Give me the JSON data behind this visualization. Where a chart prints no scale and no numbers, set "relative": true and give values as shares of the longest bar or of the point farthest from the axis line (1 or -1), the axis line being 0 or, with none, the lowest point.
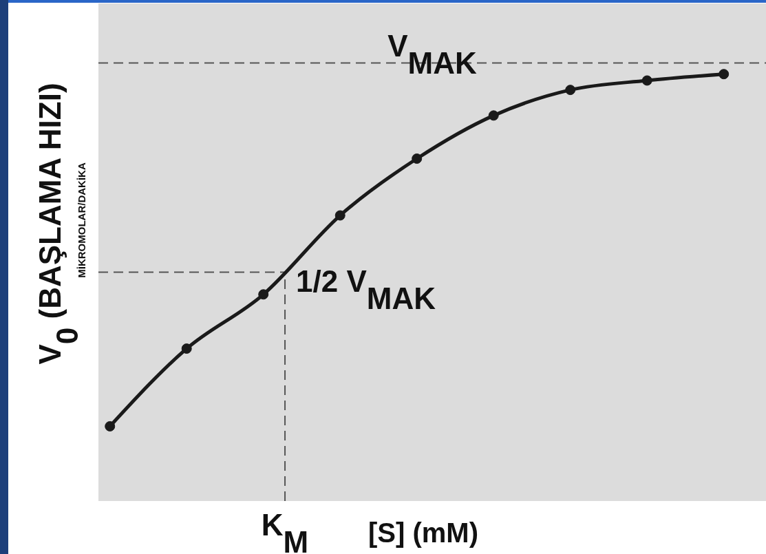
{
  "chart_data": {
    "type": "line",
    "relative": true,
    "xlabel": "[S] (mM)",
    "ylabel": "V$_{0}$ (BAŞLAMA HIZI)",
    "annotations": [
      "MİKROMOLAR/DAKİKA",
      "K$_{M}$"
    ],
    "categories": [
      null,
      null,
      null,
      null,
      null,
      null,
      null,
      null,
      null
    ],
    "series": [
      {
        "color": "#1a1a1a",
        "values": [
          0.175,
          0.357,
          0.484,
          0.669,
          0.802,
          0.903,
          0.963,
          0.985,
          1
        ]
      }
    ],
    "marker": "circle",
    "line_style": "solid",
    "grid": false,
    "legend": false,
    "ref_lines": [
      {
        "axis": "y",
        "value": 1.026,
        "label": "V$_{MAK}$",
        "line_style": "dashed",
        "color": "#555555"
      },
      {
        "axis": "y",
        "value": 0.536,
        "label": "1/2 V$_{MAK}$",
        "line_style": "dashed",
        "color": "#555555"
      }
    ]
  }
}
